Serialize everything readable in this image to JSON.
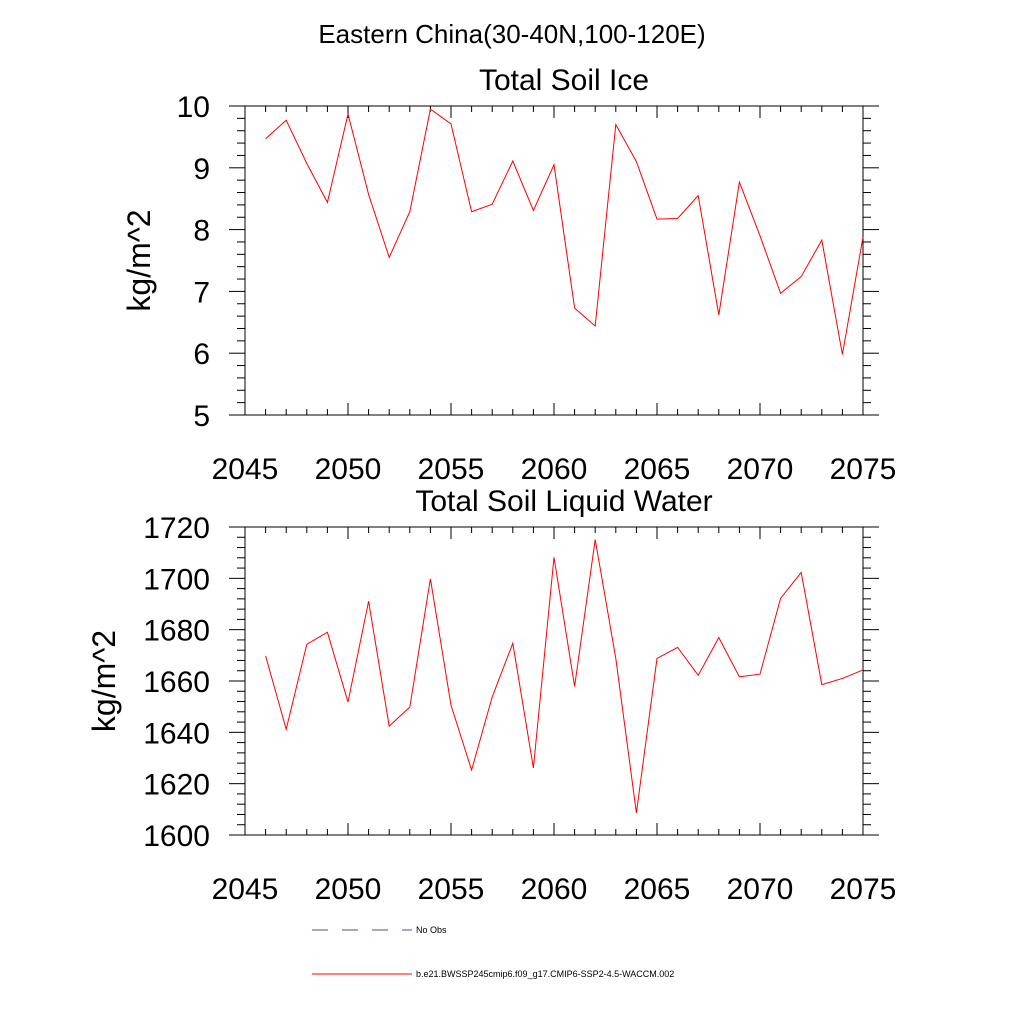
{
  "figure": {
    "title": "Eastern China(30-40N,100-120E)"
  },
  "legend": {
    "items": [
      {
        "label": "No Obs",
        "color": "#4a4a9a",
        "dashed": true
      },
      {
        "label": "b.e21.BWSSP245cmip6.f09_g17.CMIP6-SSP2-4.5-WACCM.002",
        "color": "#ff0000",
        "dashed": false
      }
    ]
  },
  "chart_data": [
    {
      "type": "line",
      "title": "Total Soil Ice",
      "ylabel": "kg/m^2",
      "xlabel": "",
      "xlim": [
        2045,
        2075
      ],
      "ylim": [
        5,
        10
      ],
      "xticks": [
        2045,
        2050,
        2055,
        2060,
        2065,
        2070,
        2075
      ],
      "yticks": [
        5,
        6,
        7,
        8,
        9,
        10
      ],
      "grid": false,
      "series": [
        {
          "name": "b.e21.BWSSP245cmip6.f09_g17.CMIP6-SSP2-4.5-WACCM.002",
          "color": "#ff0000",
          "x": [
            2046,
            2047,
            2048,
            2049,
            2050,
            2051,
            2052,
            2053,
            2054,
            2055,
            2056,
            2057,
            2058,
            2059,
            2060,
            2061,
            2062,
            2063,
            2064,
            2065,
            2066,
            2067,
            2068,
            2069,
            2070,
            2071,
            2072,
            2073,
            2074,
            2075
          ],
          "values": [
            9.47,
            9.77,
            9.07,
            8.44,
            9.87,
            8.57,
            7.55,
            8.29,
            9.95,
            9.71,
            8.29,
            8.41,
            9.11,
            8.31,
            9.05,
            6.73,
            6.44,
            9.7,
            9.1,
            8.17,
            8.18,
            8.55,
            6.62,
            8.77,
            7.9,
            6.97,
            7.24,
            7.83,
            5.98,
            7.88
          ]
        }
      ]
    },
    {
      "type": "line",
      "title": "Total Soil Liquid Water",
      "ylabel": "kg/m^2",
      "xlabel": "",
      "xlim": [
        2045,
        2075
      ],
      "ylim": [
        1600,
        1720
      ],
      "xticks": [
        2045,
        2050,
        2055,
        2060,
        2065,
        2070,
        2075
      ],
      "yticks": [
        1600,
        1620,
        1640,
        1660,
        1680,
        1700,
        1720
      ],
      "grid": false,
      "series": [
        {
          "name": "b.e21.BWSSP245cmip6.f09_g17.CMIP6-SSP2-4.5-WACCM.002",
          "color": "#ff0000",
          "x": [
            2046,
            2047,
            2048,
            2049,
            2050,
            2051,
            2052,
            2053,
            2054,
            2055,
            2056,
            2057,
            2058,
            2059,
            2060,
            2061,
            2062,
            2063,
            2064,
            2065,
            2066,
            2067,
            2068,
            2069,
            2070,
            2071,
            2072,
            2073,
            2074,
            2075
          ],
          "values": [
            1669.8,
            1641.2,
            1674.3,
            1679.0,
            1651.8,
            1691.1,
            1642.4,
            1649.8,
            1699.8,
            1650.6,
            1625.3,
            1653.8,
            1674.7,
            1626.1,
            1708.2,
            1657.9,
            1715.1,
            1668.8,
            1608.6,
            1668.8,
            1673.1,
            1662.2,
            1676.9,
            1661.6,
            1662.7,
            1692.2,
            1702.3,
            1658.6,
            1661.0,
            1664.3
          ]
        }
      ]
    }
  ]
}
